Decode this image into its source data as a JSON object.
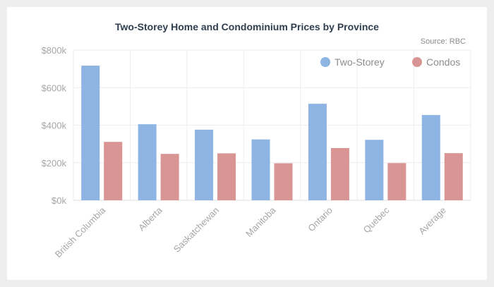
{
  "chart_data": {
    "type": "bar",
    "title": "Two-Storey Home and Condominium Prices by Province",
    "subtitle": "Source: RBC",
    "categories": [
      "British Columbia",
      "Alberta",
      "Saskatchewan",
      "Manitoba",
      "Ontario",
      "Quebec",
      "Average"
    ],
    "series": [
      {
        "name": "Two-Storey",
        "color": "#8db4e2",
        "values": [
          717000,
          405000,
          376000,
          324000,
          514000,
          322000,
          454000
        ]
      },
      {
        "name": "Condos",
        "color": "#d99594",
        "values": [
          311000,
          247000,
          250000,
          197000,
          278000,
          198000,
          251000
        ]
      }
    ],
    "ylim": [
      0,
      800000
    ],
    "yticks": [
      0,
      200000,
      400000,
      600000,
      800000
    ],
    "ytick_labels": [
      "$0k",
      "$200k",
      "$400k",
      "$600k",
      "$800k"
    ],
    "grid": true,
    "legend": "top-right"
  }
}
